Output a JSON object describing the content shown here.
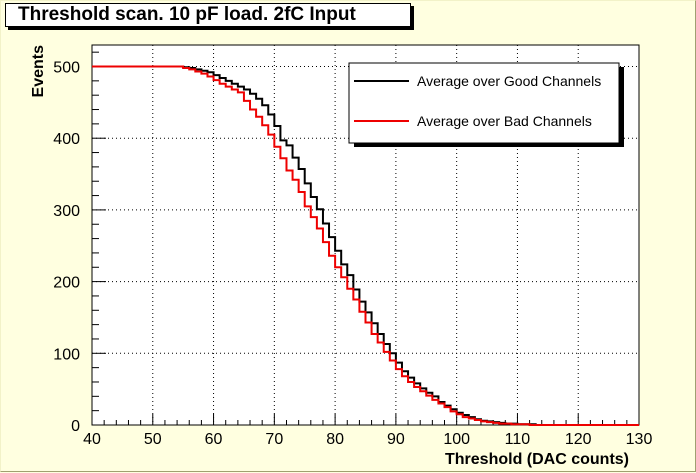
{
  "chart_data": {
    "type": "line",
    "title": "Threshold scan. 10 pF load. 2fC Input",
    "xlabel": "Threshold (DAC counts)",
    "ylabel": "Events",
    "xlim": [
      40,
      130
    ],
    "ylim": [
      0,
      530
    ],
    "xticks": [
      40,
      50,
      60,
      70,
      80,
      90,
      100,
      110,
      120,
      130
    ],
    "yticks": [
      0,
      100,
      200,
      300,
      400,
      500
    ],
    "grid": true,
    "legend_position": "top-right",
    "step": true,
    "x": [
      40,
      41,
      42,
      43,
      44,
      45,
      46,
      47,
      48,
      49,
      50,
      51,
      52,
      53,
      54,
      55,
      56,
      57,
      58,
      59,
      60,
      61,
      62,
      63,
      64,
      65,
      66,
      67,
      68,
      69,
      70,
      71,
      72,
      73,
      74,
      75,
      76,
      77,
      78,
      79,
      80,
      81,
      82,
      83,
      84,
      85,
      86,
      87,
      88,
      89,
      90,
      91,
      92,
      93,
      94,
      95,
      96,
      97,
      98,
      99,
      100,
      101,
      102,
      103,
      104,
      105,
      106,
      107,
      108,
      109,
      110,
      111,
      112,
      113,
      114,
      115,
      116,
      117,
      118,
      119,
      120,
      121,
      122,
      123,
      124,
      125,
      126,
      127,
      128,
      129
    ],
    "series": [
      {
        "name": "Average over Good Channels",
        "color": "#000000",
        "values": [
          500,
          500,
          500,
          500,
          500,
          500,
          500,
          500,
          500,
          500,
          500,
          500,
          500,
          500,
          500,
          499,
          498,
          496,
          494,
          492,
          488,
          484,
          480,
          476,
          472,
          468,
          462,
          455,
          446,
          433,
          417,
          397,
          390,
          373,
          357,
          337,
          318,
          301,
          281,
          262,
          243,
          224,
          209,
          189,
          172,
          157,
          142,
          127,
          113,
          100,
          87,
          75,
          66,
          58,
          51,
          45,
          40,
          32,
          27,
          22,
          17,
          14,
          11,
          8,
          6,
          5,
          4,
          3,
          2,
          2,
          1,
          1,
          1,
          0,
          0,
          0,
          0,
          0,
          0,
          0,
          0,
          0,
          0,
          0,
          0,
          0,
          0,
          0,
          0,
          0
        ]
      },
      {
        "name": "Average over Bad Channels",
        "color": "#ee0000",
        "values": [
          500,
          500,
          500,
          500,
          500,
          500,
          500,
          500,
          500,
          500,
          500,
          500,
          500,
          500,
          500,
          498,
          496,
          493,
          490,
          486,
          481,
          476,
          472,
          468,
          464,
          452,
          440,
          430,
          418,
          405,
          388,
          372,
          355,
          342,
          325,
          305,
          290,
          274,
          255,
          236,
          220,
          206,
          190,
          175,
          158,
          143,
          127,
          115,
          102,
          90,
          78,
          68,
          60,
          53,
          47,
          41,
          35,
          30,
          25,
          19,
          15,
          11,
          9,
          7,
          5,
          4,
          3,
          2,
          2,
          1,
          1,
          1,
          0,
          0,
          0,
          0,
          0,
          0,
          0,
          0,
          0,
          0,
          0,
          0,
          0,
          0,
          0,
          0,
          0,
          0
        ]
      }
    ]
  }
}
